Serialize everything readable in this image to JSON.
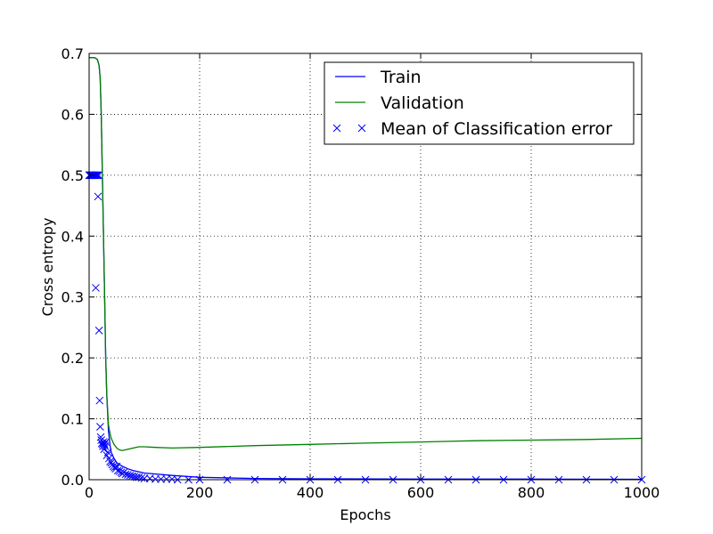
{
  "chart_data": {
    "type": "line",
    "title": "",
    "xlabel": "Epochs",
    "ylabel": "Cross entropy",
    "xlim": [
      0,
      1000
    ],
    "ylim": [
      0.0,
      0.7
    ],
    "grid": true,
    "legend_position": "top-right",
    "x_ticks": [
      0,
      200,
      400,
      600,
      800,
      1000
    ],
    "x_tick_labels": [
      "0",
      "200",
      "400",
      "600",
      "800",
      "1000"
    ],
    "y_ticks": [
      0.0,
      0.1,
      0.2,
      0.3,
      0.4,
      0.5,
      0.6,
      0.7
    ],
    "y_tick_labels": [
      "0.0",
      "0.1",
      "0.2",
      "0.3",
      "0.4",
      "0.5",
      "0.6",
      "0.7"
    ],
    "series": [
      {
        "name": "Train",
        "style": "line",
        "color": "#0000ff",
        "x": [
          0,
          10,
          15,
          18,
          20,
          22,
          25,
          28,
          30,
          32,
          35,
          38,
          40,
          45,
          50,
          60,
          70,
          80,
          100,
          150,
          200,
          300,
          400,
          600,
          800,
          1000
        ],
        "y": [
          0.693,
          0.693,
          0.69,
          0.68,
          0.66,
          0.6,
          0.45,
          0.3,
          0.2,
          0.14,
          0.08,
          0.055,
          0.045,
          0.035,
          0.028,
          0.022,
          0.018,
          0.015,
          0.011,
          0.007,
          0.004,
          0.002,
          0.0015,
          0.001,
          0.001,
          0.0008
        ]
      },
      {
        "name": "Validation",
        "style": "line",
        "color": "#008000",
        "x": [
          0,
          10,
          15,
          18,
          20,
          22,
          25,
          28,
          30,
          32,
          35,
          38,
          40,
          45,
          50,
          55,
          60,
          70,
          80,
          90,
          100,
          120,
          150,
          200,
          300,
          400,
          500,
          600,
          700,
          800,
          900,
          1000
        ],
        "y": [
          0.693,
          0.693,
          0.69,
          0.68,
          0.66,
          0.6,
          0.45,
          0.3,
          0.2,
          0.14,
          0.09,
          0.075,
          0.068,
          0.058,
          0.052,
          0.049,
          0.048,
          0.05,
          0.052,
          0.054,
          0.054,
          0.053,
          0.052,
          0.053,
          0.056,
          0.058,
          0.06,
          0.062,
          0.064,
          0.065,
          0.066,
          0.068
        ]
      },
      {
        "name": "Mean of Classification error",
        "style": "scatter",
        "marker": "x",
        "color": "#0000ff",
        "x": [
          0,
          1,
          2,
          3,
          4,
          5,
          6,
          7,
          8,
          9,
          10,
          11,
          12,
          13,
          14,
          15,
          16,
          17,
          18,
          19,
          20,
          21,
          22,
          23,
          24,
          25,
          26,
          27,
          28,
          29,
          30,
          32,
          34,
          36,
          38,
          40,
          42,
          44,
          46,
          48,
          50,
          52,
          55,
          58,
          60,
          63,
          66,
          70,
          74,
          78,
          82,
          86,
          90,
          95,
          100,
          110,
          120,
          130,
          140,
          150,
          160,
          180,
          200,
          250,
          300,
          350,
          400,
          450,
          500,
          550,
          600,
          650,
          700,
          750,
          800,
          850,
          900,
          950,
          1000
        ],
        "y": [
          0.5,
          0.5,
          0.5,
          0.5,
          0.5,
          0.5,
          0.5,
          0.5,
          0.5,
          0.5,
          0.5,
          0.5,
          0.315,
          0.5,
          0.5,
          0.5,
          0.465,
          0.5,
          0.245,
          0.13,
          0.087,
          0.07,
          0.065,
          0.06,
          0.058,
          0.055,
          0.062,
          0.05,
          0.058,
          0.055,
          0.062,
          0.04,
          0.045,
          0.035,
          0.03,
          0.028,
          0.025,
          0.022,
          0.02,
          0.018,
          0.022,
          0.015,
          0.014,
          0.012,
          0.01,
          0.012,
          0.009,
          0.008,
          0.007,
          0.006,
          0.005,
          0.004,
          0.004,
          0.003,
          0.002,
          0.002,
          0.001,
          0.001,
          0.001,
          0.001,
          0.0,
          0.0,
          0.0,
          0.0,
          0.0,
          0.0,
          0.0,
          0.0,
          0.0,
          0.0,
          0.0,
          0.0,
          0.0,
          0.0,
          0.0,
          0.0,
          0.0,
          0.0,
          0.0
        ]
      }
    ]
  }
}
